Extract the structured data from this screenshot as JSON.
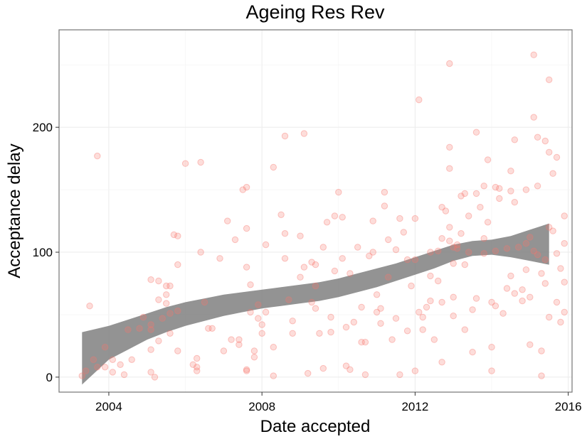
{
  "chart_data": {
    "type": "scatter",
    "title": "Ageing Res Rev",
    "xlabel": "Date accepted",
    "ylabel": "Acceptance delay",
    "xlim": [
      2002.7,
      2016.1
    ],
    "ylim": [
      -12,
      278
    ],
    "x_ticks": [
      2004,
      2008,
      2012,
      2016
    ],
    "x_tick_labels": [
      "2004",
      "2008",
      "2012",
      "2016"
    ],
    "y_ticks": [
      0,
      100,
      200
    ],
    "y_tick_labels": [
      "0",
      "100",
      "200"
    ],
    "grid": true,
    "point_color": "#f8766d",
    "smooth_color": "#808080",
    "smooth_band": {
      "x": [
        2003.3,
        2004.0,
        2004.5,
        2005.0,
        2005.5,
        2006.0,
        2006.5,
        2007.0,
        2007.5,
        2008.0,
        2008.5,
        2009.0,
        2009.5,
        2010.0,
        2010.5,
        2011.0,
        2011.5,
        2012.0,
        2012.5,
        2013.0,
        2013.5,
        2014.0,
        2014.5,
        2015.0,
        2015.5
      ],
      "lower": [
        -6,
        14,
        22,
        30,
        36,
        41,
        45,
        49,
        52,
        55,
        57,
        59,
        61,
        64,
        68,
        72,
        77,
        82,
        87,
        93,
        97,
        98,
        96,
        93,
        90
      ],
      "upper": [
        36,
        41,
        46,
        51,
        56,
        60,
        63,
        66,
        68,
        70,
        72,
        74,
        76,
        79,
        83,
        87,
        91,
        96,
        101,
        106,
        109,
        110,
        113,
        118,
        123
      ]
    },
    "points": [
      [
        2003.3,
        1
      ],
      [
        2003.4,
        5
      ],
      [
        2003.5,
        57
      ],
      [
        2003.6,
        14
      ],
      [
        2003.7,
        177
      ],
      [
        2003.7,
        8
      ],
      [
        2003.9,
        24
      ],
      [
        2003.9,
        8
      ],
      [
        2004.1,
        14
      ],
      [
        2004.1,
        4
      ],
      [
        2004.3,
        10
      ],
      [
        2004.4,
        2
      ],
      [
        2004.5,
        38
      ],
      [
        2004.6,
        14
      ],
      [
        2004.8,
        39
      ],
      [
        2004.9,
        48
      ],
      [
        2005.1,
        78
      ],
      [
        2005.1,
        42
      ],
      [
        2005.1,
        38
      ],
      [
        2005.1,
        22
      ],
      [
        2005.1,
        4
      ],
      [
        2005.2,
        0
      ],
      [
        2005.3,
        77
      ],
      [
        2005.3,
        62
      ],
      [
        2005.3,
        29
      ],
      [
        2005.4,
        47
      ],
      [
        2005.5,
        73
      ],
      [
        2005.5,
        59
      ],
      [
        2005.5,
        66
      ],
      [
        2005.6,
        73
      ],
      [
        2005.6,
        51
      ],
      [
        2005.6,
        35
      ],
      [
        2005.7,
        114
      ],
      [
        2005.8,
        113
      ],
      [
        2005.8,
        90
      ],
      [
        2005.8,
        53
      ],
      [
        2005.8,
        21
      ],
      [
        2006.0,
        171
      ],
      [
        2006.2,
        10
      ],
      [
        2006.3,
        15
      ],
      [
        2006.3,
        5
      ],
      [
        2006.3,
        8
      ],
      [
        2006.4,
        100
      ],
      [
        2006.4,
        172
      ],
      [
        2006.5,
        60
      ],
      [
        2006.6,
        39
      ],
      [
        2006.7,
        39
      ],
      [
        2006.9,
        95
      ],
      [
        2007.0,
        21
      ],
      [
        2007.1,
        125
      ],
      [
        2007.2,
        30
      ],
      [
        2007.3,
        110
      ],
      [
        2007.4,
        26
      ],
      [
        2007.4,
        30
      ],
      [
        2007.5,
        150
      ],
      [
        2007.6,
        152
      ],
      [
        2007.6,
        119
      ],
      [
        2007.6,
        88
      ],
      [
        2007.6,
        5
      ],
      [
        2007.6,
        6
      ],
      [
        2007.7,
        74
      ],
      [
        2007.7,
        52
      ],
      [
        2007.8,
        21
      ],
      [
        2007.8,
        16
      ],
      [
        2007.9,
        58
      ],
      [
        2007.9,
        47
      ],
      [
        2008.0,
        42
      ],
      [
        2008.0,
        35
      ],
      [
        2008.1,
        52
      ],
      [
        2008.1,
        106
      ],
      [
        2008.3,
        168
      ],
      [
        2008.3,
        24
      ],
      [
        2008.3,
        1
      ],
      [
        2008.5,
        130
      ],
      [
        2008.6,
        193
      ],
      [
        2008.6,
        115
      ],
      [
        2008.6,
        95
      ],
      [
        2008.7,
        62
      ],
      [
        2008.8,
        45
      ],
      [
        2008.8,
        35
      ],
      [
        2009.0,
        113
      ],
      [
        2009.0,
        80
      ],
      [
        2009.1,
        195
      ],
      [
        2009.1,
        88
      ],
      [
        2009.2,
        3
      ],
      [
        2009.3,
        92
      ],
      [
        2009.3,
        60
      ],
      [
        2009.4,
        90
      ],
      [
        2009.4,
        73
      ],
      [
        2009.4,
        55
      ],
      [
        2009.5,
        35
      ],
      [
        2009.6,
        7
      ],
      [
        2009.6,
        104
      ],
      [
        2009.7,
        124
      ],
      [
        2009.8,
        48
      ],
      [
        2009.8,
        36
      ],
      [
        2009.9,
        85
      ],
      [
        2009.9,
        129
      ],
      [
        2010.0,
        148
      ],
      [
        2010.1,
        95
      ],
      [
        2010.1,
        128
      ],
      [
        2010.2,
        9
      ],
      [
        2010.2,
        40
      ],
      [
        2010.3,
        6
      ],
      [
        2010.3,
        83
      ],
      [
        2010.4,
        44
      ],
      [
        2010.5,
        104
      ],
      [
        2010.6,
        56
      ],
      [
        2010.6,
        28
      ],
      [
        2010.7,
        28
      ],
      [
        2010.7,
        2
      ],
      [
        2010.8,
        97
      ],
      [
        2010.9,
        100
      ],
      [
        2010.9,
        125
      ],
      [
        2011.0,
        52
      ],
      [
        2011.0,
        66
      ],
      [
        2011.1,
        55
      ],
      [
        2011.1,
        43
      ],
      [
        2011.2,
        148
      ],
      [
        2011.2,
        137
      ],
      [
        2011.3,
        110
      ],
      [
        2011.3,
        80
      ],
      [
        2011.4,
        30
      ],
      [
        2011.5,
        102
      ],
      [
        2011.5,
        47
      ],
      [
        2011.6,
        127
      ],
      [
        2011.6,
        2
      ],
      [
        2011.7,
        116
      ],
      [
        2011.8,
        94
      ],
      [
        2011.8,
        37
      ],
      [
        2011.9,
        73
      ],
      [
        2012.0,
        127
      ],
      [
        2012.0,
        94
      ],
      [
        2012.0,
        5
      ],
      [
        2012.1,
        222
      ],
      [
        2012.1,
        52
      ],
      [
        2012.2,
        48
      ],
      [
        2012.2,
        38
      ],
      [
        2012.3,
        56
      ],
      [
        2012.4,
        100
      ],
      [
        2012.4,
        81
      ],
      [
        2012.4,
        61
      ],
      [
        2012.5,
        30
      ],
      [
        2012.6,
        101
      ],
      [
        2012.6,
        77
      ],
      [
        2012.7,
        111
      ],
      [
        2012.7,
        136
      ],
      [
        2012.7,
        60
      ],
      [
        2012.7,
        12
      ],
      [
        2012.8,
        133
      ],
      [
        2012.9,
        251
      ],
      [
        2012.9,
        184
      ],
      [
        2012.9,
        167
      ],
      [
        2012.9,
        120
      ],
      [
        2012.9,
        109
      ],
      [
        2013.0,
        91
      ],
      [
        2013.0,
        64
      ],
      [
        2013.0,
        49
      ],
      [
        2013.0,
        104
      ],
      [
        2013.1,
        103
      ],
      [
        2013.1,
        106
      ],
      [
        2013.2,
        145
      ],
      [
        2013.2,
        115
      ],
      [
        2013.3,
        147
      ],
      [
        2013.3,
        90
      ],
      [
        2013.3,
        38
      ],
      [
        2013.4,
        129
      ],
      [
        2013.4,
        100
      ],
      [
        2013.5,
        54
      ],
      [
        2013.5,
        20
      ],
      [
        2013.6,
        196
      ],
      [
        2013.6,
        147
      ],
      [
        2013.6,
        63
      ],
      [
        2013.7,
        136
      ],
      [
        2013.8,
        153
      ],
      [
        2013.8,
        99
      ],
      [
        2013.8,
        111
      ],
      [
        2013.9,
        174
      ],
      [
        2013.9,
        124
      ],
      [
        2014.0,
        60
      ],
      [
        2014.0,
        24
      ],
      [
        2014.0,
        5
      ],
      [
        2014.1,
        152
      ],
      [
        2014.1,
        101
      ],
      [
        2014.1,
        57
      ],
      [
        2014.2,
        151
      ],
      [
        2014.2,
        143
      ],
      [
        2014.3,
        51
      ],
      [
        2014.4,
        103
      ],
      [
        2014.4,
        71
      ],
      [
        2014.5,
        165
      ],
      [
        2014.5,
        149
      ],
      [
        2014.5,
        81
      ],
      [
        2014.6,
        190
      ],
      [
        2014.6,
        140
      ],
      [
        2014.6,
        67
      ],
      [
        2014.7,
        104
      ],
      [
        2014.8,
        70
      ],
      [
        2014.8,
        61
      ],
      [
        2014.9,
        150
      ],
      [
        2014.9,
        107
      ],
      [
        2014.9,
        86
      ],
      [
        2015.0,
        112
      ],
      [
        2015.0,
        64
      ],
      [
        2015.0,
        26
      ],
      [
        2015.1,
        258
      ],
      [
        2015.1,
        208
      ],
      [
        2015.1,
        101
      ],
      [
        2015.2,
        192
      ],
      [
        2015.2,
        153
      ],
      [
        2015.2,
        98
      ],
      [
        2015.3,
        83
      ],
      [
        2015.3,
        21
      ],
      [
        2015.3,
        1
      ],
      [
        2015.4,
        189
      ],
      [
        2015.4,
        94
      ],
      [
        2015.4,
        75
      ],
      [
        2015.5,
        238
      ],
      [
        2015.5,
        180
      ],
      [
        2015.5,
        120
      ],
      [
        2015.5,
        48
      ],
      [
        2015.6,
        163
      ],
      [
        2015.6,
        117
      ],
      [
        2015.7,
        176
      ],
      [
        2015.7,
        99
      ],
      [
        2015.7,
        60
      ],
      [
        2015.8,
        87
      ],
      [
        2015.8,
        44
      ],
      [
        2015.9,
        129
      ],
      [
        2015.9,
        107
      ],
      [
        2015.9,
        76
      ],
      [
        2015.9,
        52
      ]
    ]
  }
}
